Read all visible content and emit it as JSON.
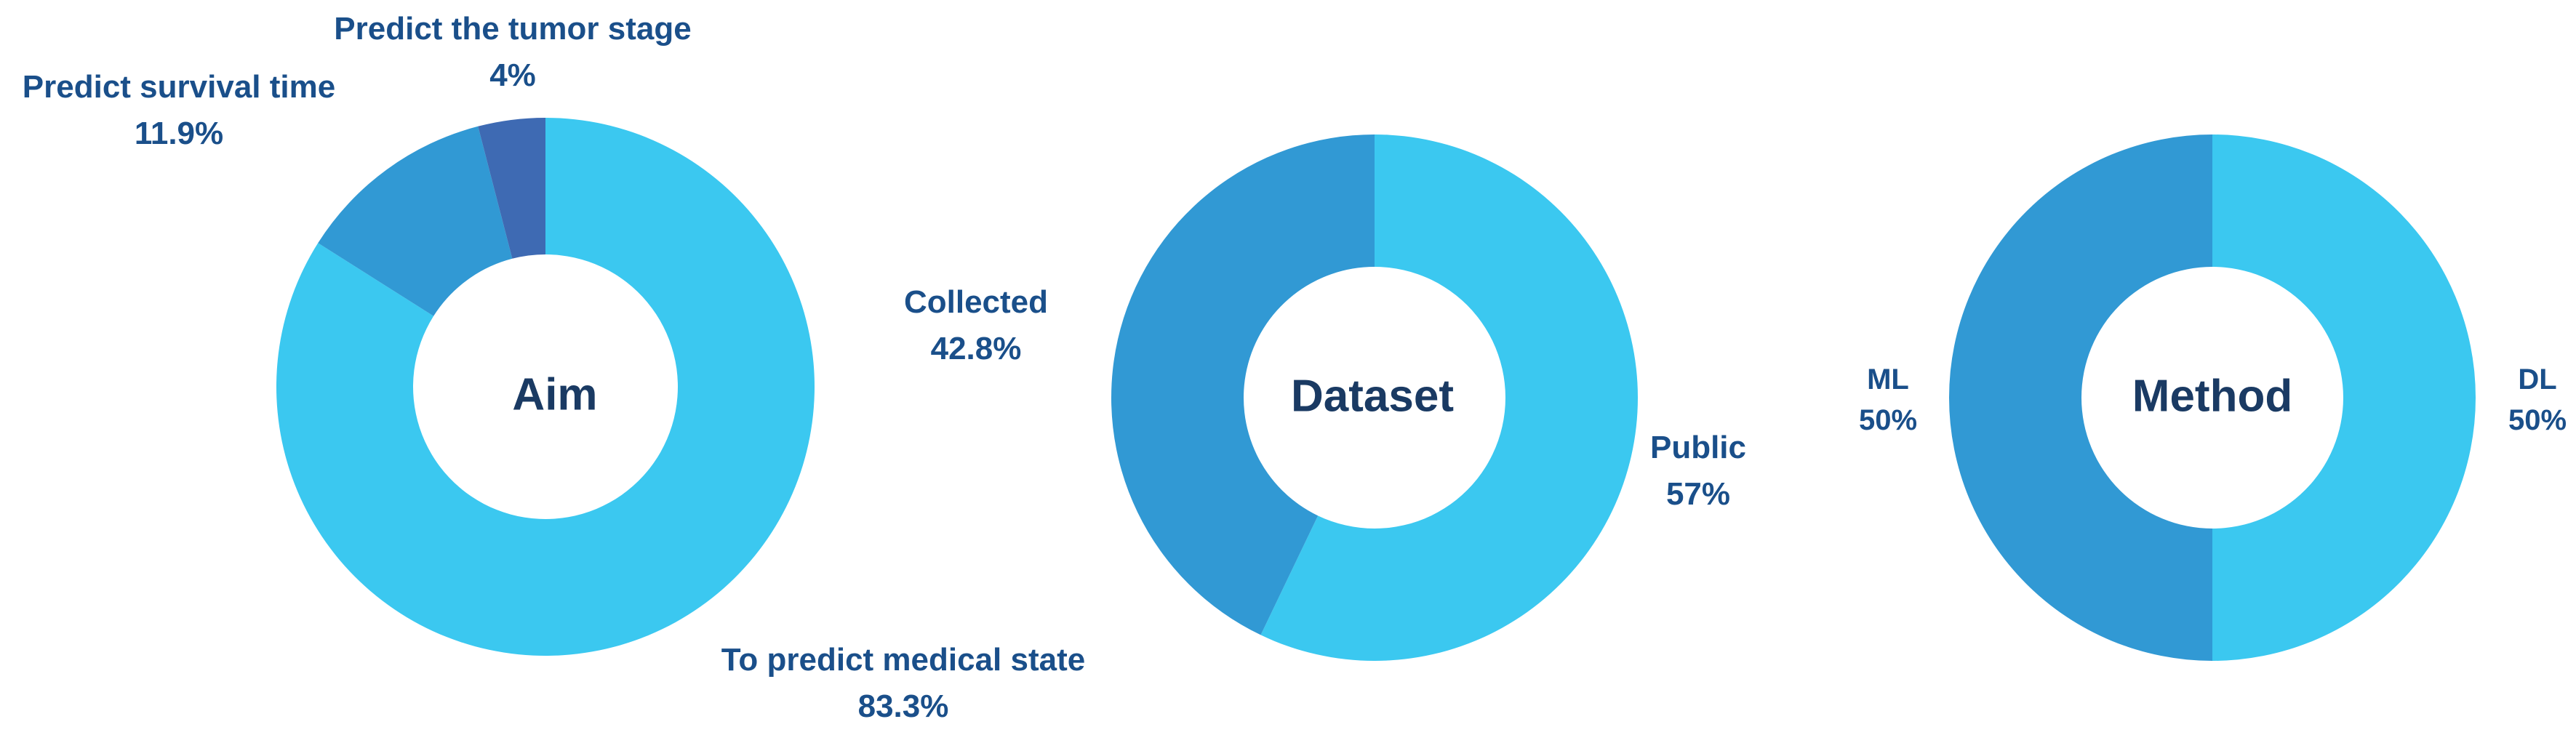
{
  "chart_data": [
    {
      "type": "pie",
      "center_title": "Aim",
      "slices": [
        {
          "label": "To predict medical state",
          "value_text": "83.3%",
          "value": 83.3,
          "color": "#3bc8f0"
        },
        {
          "label": "Predict survival time",
          "value_text": "11.9%",
          "value": 11.9,
          "color": "#3199d4"
        },
        {
          "label": "Predict the tumor stage",
          "value_text": "4%",
          "value": 4,
          "color": "#3e6ab3"
        }
      ]
    },
    {
      "type": "pie",
      "center_title": "Dataset",
      "slices": [
        {
          "label": "Public",
          "value_text": "57%",
          "value": 57,
          "color": "#3bc8f0"
        },
        {
          "label": "Collected",
          "value_text": "42.8%",
          "value": 42.8,
          "color": "#3199d4"
        }
      ]
    },
    {
      "type": "pie",
      "center_title": "Method",
      "slices": [
        {
          "label": "DL",
          "value_text": "50%",
          "value": 50,
          "color": "#3bc8f0"
        },
        {
          "label": "ML",
          "value_text": "50%",
          "value": 50,
          "color": "#3199d4"
        }
      ]
    }
  ]
}
